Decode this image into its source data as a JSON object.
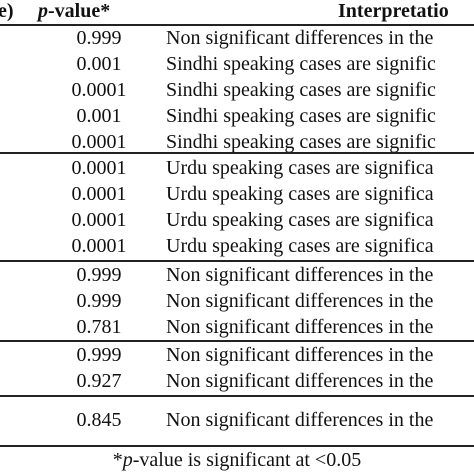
{
  "header": {
    "left_fragment": "e)",
    "pvalue_italic": "p",
    "pvalue_rest": "-value*",
    "interpretation": "Interpretatio"
  },
  "rows": [
    {
      "pvalue": "0.999",
      "interpretation": "Non significant differences in the"
    },
    {
      "pvalue": "0.001",
      "interpretation": "Sindhi speaking cases are signific"
    },
    {
      "pvalue": "0.0001",
      "interpretation": "Sindhi speaking cases are signific"
    },
    {
      "pvalue": "0.001",
      "interpretation": "Sindhi speaking cases are signific"
    },
    {
      "pvalue": "0.0001",
      "interpretation": "Sindhi speaking cases are signific"
    },
    {
      "pvalue": "0.0001",
      "interpretation": "Urdu speaking cases are significa"
    },
    {
      "pvalue": "0.0001",
      "interpretation": "Urdu speaking cases are significa"
    },
    {
      "pvalue": "0.0001",
      "interpretation": "Urdu speaking cases are significa"
    },
    {
      "pvalue": "0.0001",
      "interpretation": "Urdu speaking cases are significa"
    },
    {
      "pvalue": "0.999",
      "interpretation": "Non significant differences in the"
    },
    {
      "pvalue": "0.999",
      "interpretation": "Non significant differences in the"
    },
    {
      "pvalue": "0.781",
      "interpretation": "Non significant differences in the"
    },
    {
      "pvalue": "0.999",
      "interpretation": "Non significant differences in the"
    },
    {
      "pvalue": "0.927",
      "interpretation": "Non significant differences in the"
    },
    {
      "pvalue": "0.845",
      "interpretation": "Non significant differences in the"
    }
  ],
  "footnote": {
    "prefix": "*",
    "italic": "p",
    "rest": "-value is significant at <0.05"
  }
}
